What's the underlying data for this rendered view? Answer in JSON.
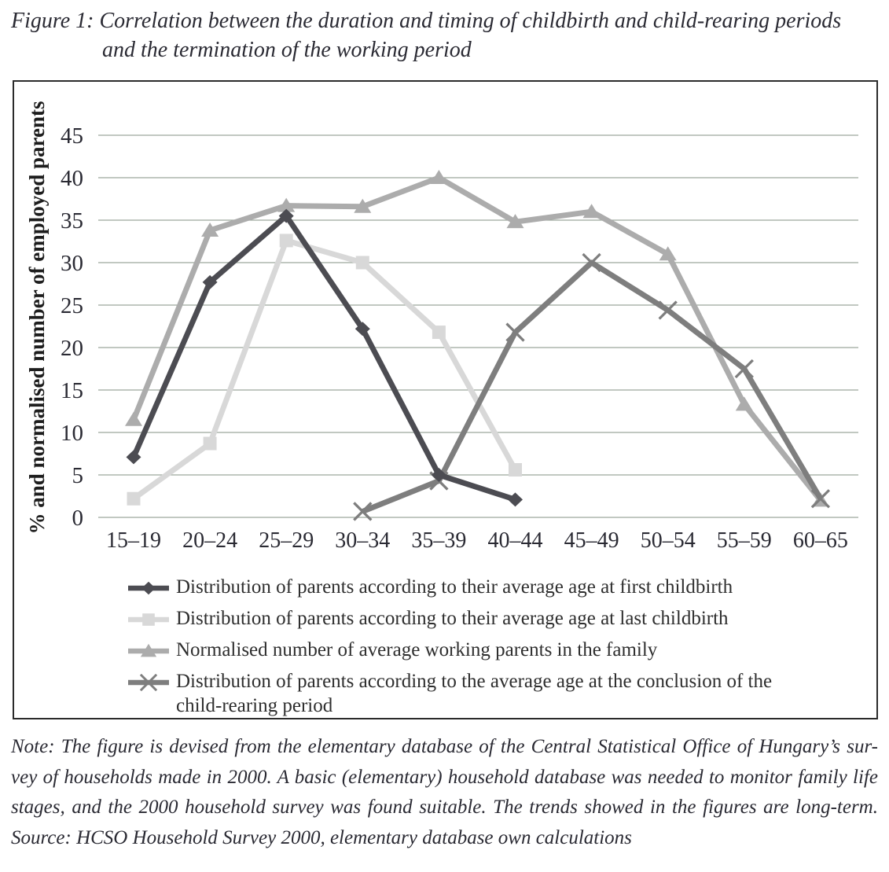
{
  "figure": {
    "title_line1": "Figure 1: Correlation between the duration and timing of childbirth and child-rearing periods",
    "title_line2": "and the termination of the working period"
  },
  "chart_data": {
    "type": "line",
    "categories": [
      "15–19",
      "20–24",
      "25–29",
      "30–34",
      "35–39",
      "40–44",
      "45–49",
      "50–54",
      "55–59",
      "60–65"
    ],
    "title": "",
    "xlabel": "",
    "ylabel": "% and normalised number of employed parents",
    "ylim": [
      0,
      45
    ],
    "ytick_interval": 5,
    "yticks": [
      0,
      5,
      10,
      15,
      20,
      25,
      30,
      35,
      40,
      45
    ],
    "grid": true,
    "legend_position": "bottom-left inside frame",
    "series": [
      {
        "name": "Distribution of parents according to their average age at first childbirth",
        "marker": "diamond",
        "color": "#4c4c52",
        "values": [
          7.1,
          27.7,
          35.5,
          22.2,
          5.0,
          2.1,
          null,
          null,
          null,
          null
        ]
      },
      {
        "name": "Distribution of parents according to their average age at last childbirth",
        "marker": "square",
        "color": "#d8d8d8",
        "values": [
          2.2,
          8.7,
          32.6,
          30.0,
          21.8,
          5.6,
          null,
          null,
          null,
          null
        ]
      },
      {
        "name": "Normalised number of average working parents in the family",
        "marker": "triangle",
        "color": "#acacac",
        "values": [
          11.5,
          33.8,
          36.7,
          36.6,
          40.0,
          34.8,
          36.0,
          31.0,
          13.3,
          2.0
        ]
      },
      {
        "name": "Distribution of parents according to the average age at the conclusion of the child-rearing period",
        "marker": "x",
        "color": "#7e7e7e",
        "values": [
          null,
          null,
          null,
          0.7,
          4.3,
          21.8,
          30.0,
          24.4,
          17.5,
          2.2
        ]
      }
    ]
  },
  "note": {
    "lines": [
      "Note: The figure is devised from the elementary database of the Central Statistical Office of Hungary’s sur-",
      "vey of households made in 2000. A basic (elementary) household database was needed to monitor family life",
      "stages, and the 2000 household survey was found suitable. The trends showed in the figures are long-term.",
      "Source: HCSO Household Survey 2000, elementary database own calculations"
    ]
  },
  "colors": {
    "grid": "#9ca89c",
    "frame": "#2b2b2b",
    "text": "#2a2a33"
  }
}
